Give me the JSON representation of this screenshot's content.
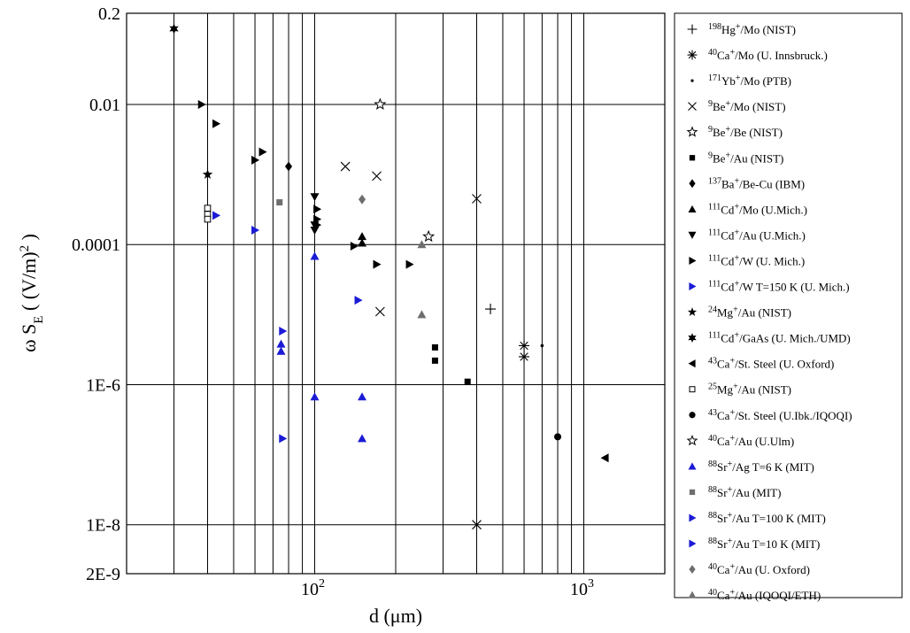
{
  "chart_data": {
    "type": "scatter",
    "title": "",
    "xlabel": "d (μm)",
    "ylabel": "ω S_E ( (V/m)^2 )",
    "xscale": "log",
    "yscale": "log",
    "xlim": [
      20,
      2000
    ],
    "ylim": [
      2e-09,
      0.2
    ],
    "x_ticks": [
      {
        "value": 100,
        "base": "10",
        "exp": "2"
      },
      {
        "value": 1000,
        "base": "10",
        "exp": "3"
      }
    ],
    "y_ticks": [
      {
        "value": 0.2,
        "label": "0.2"
      },
      {
        "value": 0.01,
        "label": "0.01"
      },
      {
        "value": 0.0001,
        "label": "0.0001"
      },
      {
        "value": 1e-06,
        "label": "1E-6"
      },
      {
        "value": 1e-08,
        "label": "1E-8"
      },
      {
        "value": 2e-09,
        "label": "2E-9"
      }
    ],
    "grid": "vertical lines at each decade step plus horizontal lines at labeled y ticks",
    "legend_placement": "right, outside plot",
    "series": [
      {
        "name": "198Hg+/Mo (NIST)",
        "iso": "198",
        "ion": "Hg",
        "rest": "/Mo (NIST)",
        "marker": "plus",
        "color": "#000000",
        "points": [
          [
            450,
            1.2e-05
          ]
        ]
      },
      {
        "name": "40Ca+/Mo (U. Innsbruck.)",
        "iso": "40",
        "ion": "Ca",
        "rest": "/Mo (U. Innsbruck.)",
        "marker": "asterisk",
        "color": "#000000",
        "points": [
          [
            600,
            3.6e-06
          ],
          [
            600,
            2.5e-06
          ]
        ]
      },
      {
        "name": "171Yb+/Mo (PTB)",
        "iso": "171",
        "ion": "Yb",
        "rest": "/Mo (PTB)",
        "marker": "dot",
        "color": "#000000",
        "points": [
          [
            700,
            3.6e-06
          ]
        ]
      },
      {
        "name": "9Be+/Mo (NIST)",
        "iso": "9",
        "ion": "Be",
        "rest": "/Mo (NIST)",
        "marker": "x",
        "color": "#000000",
        "points": [
          [
            130,
            0.0013
          ],
          [
            170,
            0.00095
          ],
          [
            400,
            0.00045
          ],
          [
            175,
            1.1e-05
          ],
          [
            400,
            1e-08
          ]
        ]
      },
      {
        "name": "9Be+/Be (NIST)",
        "iso": "9",
        "ion": "Be",
        "rest": "/Be (NIST)",
        "marker": "star-open",
        "color": "#000000",
        "points": [
          [
            175,
            0.01
          ]
        ]
      },
      {
        "name": "9Be+/Au (NIST)",
        "iso": "9",
        "ion": "Be",
        "rest": "/Au (NIST)",
        "marker": "square",
        "color": "#000000",
        "points": [
          [
            280,
            3.4e-06
          ],
          [
            280,
            2.2e-06
          ],
          [
            370,
            1.1e-06
          ]
        ]
      },
      {
        "name": "137Ba+/Be-Cu (IBM)",
        "iso": "137",
        "ion": "Ba",
        "rest": "/Be-Cu (IBM)",
        "marker": "diamond",
        "color": "#000000",
        "points": [
          [
            80,
            0.0013
          ]
        ]
      },
      {
        "name": "111Cd+/Mo (U.Mich.)",
        "iso": "111",
        "ion": "Cd",
        "rest": "/Mo (U.Mich.)",
        "marker": "triangle-up",
        "color": "#000000",
        "points": [
          [
            150,
            0.00013
          ],
          [
            150,
            0.000105
          ]
        ]
      },
      {
        "name": "111Cd+/Au (U.Mich.)",
        "iso": "111",
        "ion": "Cd",
        "rest": "/Au (U.Mich.)",
        "marker": "triangle-down",
        "color": "#000000",
        "points": [
          [
            100,
            0.00048
          ],
          [
            100,
            0.00019
          ],
          [
            100,
            0.00016
          ]
        ]
      },
      {
        "name": "111Cd+/W (U. Mich.)",
        "iso": "111",
        "ion": "Cd",
        "rest": "/W (U. Mich.)",
        "marker": "triangle-right",
        "color": "#000000",
        "points": [
          [
            38,
            0.01
          ],
          [
            43,
            0.0053
          ],
          [
            60,
            0.0016
          ],
          [
            64,
            0.0021
          ],
          [
            102,
            0.00032
          ],
          [
            102,
            0.00023
          ],
          [
            102,
            0.00019
          ],
          [
            140,
            9.5e-05
          ],
          [
            170,
            5.2e-05
          ],
          [
            225,
            5.2e-05
          ]
        ]
      },
      {
        "name": "111Cd+/W T=150 K (U. Mich.)",
        "iso": "111",
        "ion": "Cd",
        "rest": "/W T=150 K (U. Mich.)",
        "marker": "triangle-right",
        "color": "#1b1bd6",
        "points": [
          [
            43,
            0.00026
          ],
          [
            60,
            0.00016
          ],
          [
            145,
            1.6e-05
          ]
        ]
      },
      {
        "name": "24Mg+/Au (NIST)",
        "iso": "24",
        "ion": "Mg",
        "rest": "/Au (NIST)",
        "marker": "star5",
        "color": "#000000",
        "points": [
          [
            40,
            0.001
          ]
        ]
      },
      {
        "name": "111Cd+/GaAs (U. Mich./UMD)",
        "iso": "111",
        "ion": "Cd",
        "rest": "/GaAs (U. Mich./UMD)",
        "marker": "star6",
        "color": "#000000",
        "points": [
          [
            30,
            0.12
          ]
        ]
      },
      {
        "name": "43Ca+/St. Steel (U. Oxford)",
        "iso": "43",
        "ion": "Ca",
        "rest": "/St. Steel (U. Oxford)",
        "marker": "triangle-left",
        "color": "#000000",
        "points": [
          [
            1200,
            9e-08
          ]
        ]
      },
      {
        "name": "25Mg+/Au (NIST)",
        "iso": "25",
        "ion": "Mg",
        "rest": "/Au (NIST)",
        "marker": "square-open",
        "color": "#000000",
        "points": [
          [
            40,
            0.00033
          ],
          [
            40,
            0.00027
          ],
          [
            40,
            0.00023
          ]
        ]
      },
      {
        "name": "43Ca+/St. Steel (U.Ibk./IQOQI)",
        "iso": "43",
        "ion": "Ca",
        "rest": "/St. Steel (U.Ibk./IQOQI)",
        "marker": "circle",
        "color": "#000000",
        "points": [
          [
            800,
            1.8e-07
          ]
        ]
      },
      {
        "name": "40Ca+/Au (U.Ulm)",
        "iso": "40",
        "ion": "Ca",
        "rest": "/Au (U.Ulm)",
        "marker": "star-open",
        "color": "#000000",
        "points": [
          [
            265,
            0.00013
          ]
        ]
      },
      {
        "name": "88Sr+/Ag T=6 K (MIT)",
        "iso": "88",
        "ion": "Sr",
        "rest": "/Ag T=6 K (MIT)",
        "marker": "triangle-up",
        "color": "#1b1bd6",
        "points": [
          [
            100,
            6.8e-05
          ],
          [
            75,
            3.8e-06
          ],
          [
            75,
            3e-06
          ],
          [
            100,
            6.7e-07
          ],
          [
            150,
            6.7e-07
          ],
          [
            150,
            1.7e-07
          ]
        ]
      },
      {
        "name": "88Sr+/Au (MIT)",
        "iso": "88",
        "ion": "Sr",
        "rest": "/Au (MIT)",
        "marker": "square",
        "color": "#6e6e6e",
        "points": [
          [
            74,
            0.0004
          ]
        ]
      },
      {
        "name": "88Sr+/Au T=100 K (MIT)",
        "iso": "88",
        "ion": "Sr",
        "rest": "/Au T=100 K (MIT)",
        "marker": "triangle-right",
        "color": "#1b1bd6",
        "points": [
          [
            76,
            5.8e-06
          ]
        ]
      },
      {
        "name": "88Sr+/Au T=10 K (MIT)",
        "iso": "88",
        "ion": "Sr",
        "rest": "/Au T=10 K (MIT)",
        "marker": "triangle-right",
        "color": "#1b1bd6",
        "points": [
          [
            76,
            1.7e-07
          ]
        ]
      },
      {
        "name": "40Ca+/Au (U. Oxford)",
        "iso": "40",
        "ion": "Ca",
        "rest": "/Au (U. Oxford)",
        "marker": "diamond",
        "color": "#6e6e6e",
        "points": [
          [
            150,
            0.00044
          ]
        ]
      },
      {
        "name": "40Ca+/Au (IQOQI/ETH)",
        "iso": "40",
        "ion": "Ca",
        "rest": "/Au (IQOQI/ETH)",
        "marker": "triangle-up",
        "color": "#6e6e6e",
        "points": [
          [
            250,
            0.0001
          ],
          [
            250,
            1e-05
          ]
        ]
      }
    ]
  }
}
